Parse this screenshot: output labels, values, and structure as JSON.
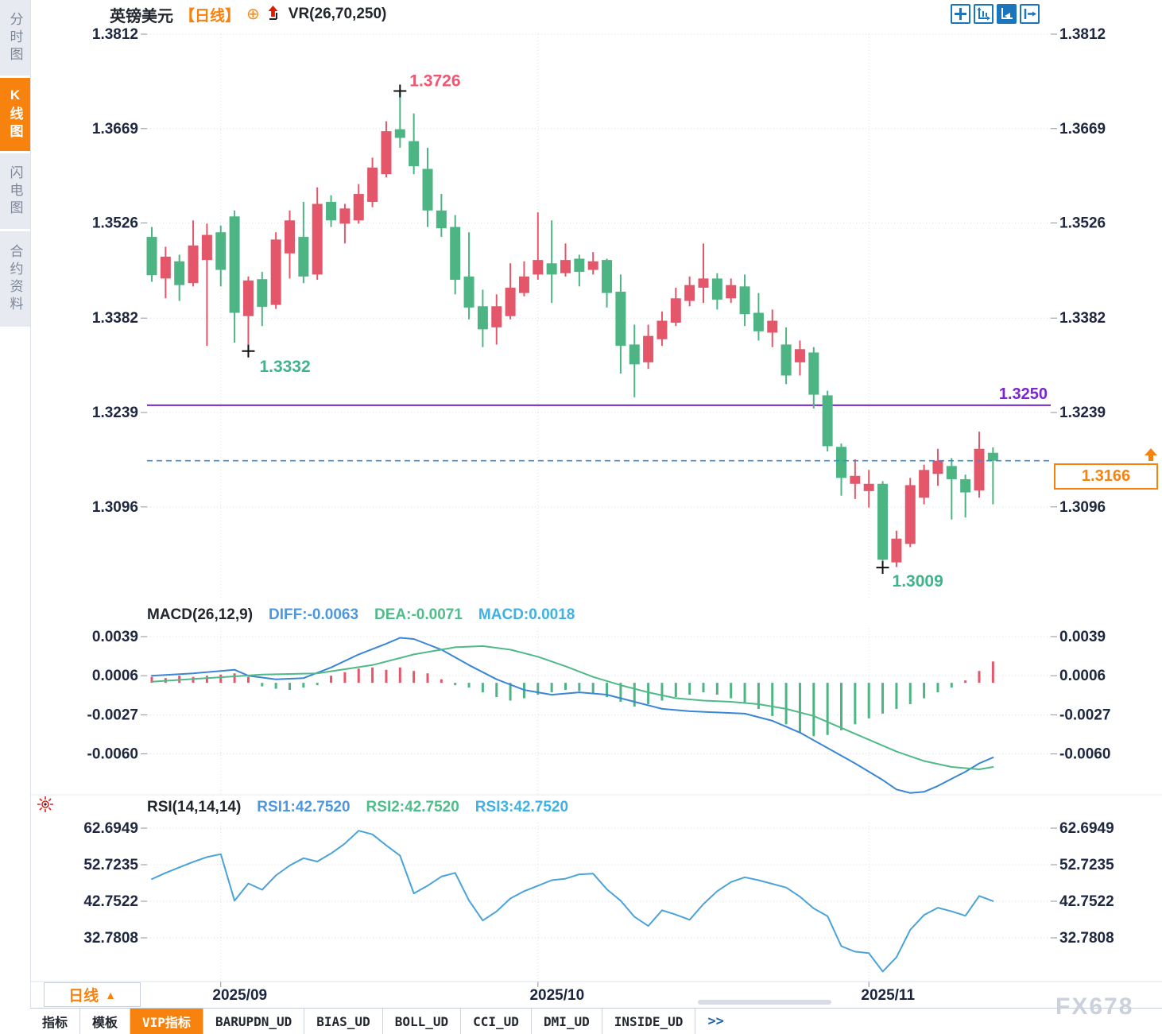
{
  "header": {
    "symbol": "英镑美元",
    "period_tag": "【日线】",
    "plus_icon": "⊕",
    "indicator": "VR(26,70,250)"
  },
  "sidebar": {
    "items": [
      {
        "label": "分时图",
        "active": false
      },
      {
        "label": "K线图",
        "active": true
      },
      {
        "label": "闪电图",
        "active": false
      },
      {
        "label": "合约资料",
        "active": false
      }
    ]
  },
  "toolbar_icons": [
    {
      "name": "crosshair-move-icon",
      "active": false
    },
    {
      "name": "axis-scale-icon",
      "active": false
    },
    {
      "name": "axis-play-icon",
      "active": true
    },
    {
      "name": "pan-right-icon",
      "active": false
    }
  ],
  "price_box": {
    "value": "1.3166"
  },
  "macd_header": {
    "title": "MACD(26,12,9)",
    "diff": "DIFF:-0.0063",
    "dea": "DEA:-0.0071",
    "macd": "MACD:0.0018"
  },
  "rsi_header": {
    "title": "RSI(14,14,14)",
    "rsi1": "RSI1:42.7520",
    "rsi2": "RSI2:42.7520",
    "rsi3": "RSI3:42.7520"
  },
  "period_button": {
    "label": "日线",
    "arrow": "▲"
  },
  "bottom_tabs": [
    {
      "label": "指标",
      "active": false
    },
    {
      "label": "模板",
      "active": false
    },
    {
      "label": "VIP指标",
      "active": true
    },
    {
      "label": "BARUPDN_UD",
      "active": false
    },
    {
      "label": "BIAS_UD",
      "active": false
    },
    {
      "label": "BOLL_UD",
      "active": false
    },
    {
      "label": "CCI_UD",
      "active": false
    },
    {
      "label": "DMI_UD",
      "active": false
    },
    {
      "label": "INSIDE_UD",
      "active": false
    },
    {
      "label": ">>",
      "active": false,
      "more": true
    }
  ],
  "watermark": "FX678",
  "colors": {
    "up": "#e4566a",
    "down": "#4db583",
    "orange": "#f8820e",
    "purple": "#7b24cf",
    "dash_blue": "#2b8fe8",
    "axis_text": "#1e2740",
    "grid": "#dcdcdc",
    "diff_line": "#3a86d6",
    "dea_line": "#4fba87",
    "rsi_line": "#4aa3d8",
    "ann_red": "#ef5670",
    "ann_green": "#3db489",
    "toolbar_blue": "#1b75bc"
  },
  "chart_data": [
    {
      "type": "candlestick",
      "title": "英镑美元 日线 (GBP/USD daily)",
      "ylabel": "price",
      "y_axis_ticks": [
        1.3812,
        1.3669,
        1.3526,
        1.3382,
        1.3239,
        1.3096
      ],
      "x_axis_ticks": [
        "2025/09",
        "2025/10",
        "2025/11"
      ],
      "month_tick_indices": [
        5,
        28,
        52
      ],
      "support_line": {
        "value": 1.325,
        "label": "1.3250"
      },
      "last_price_line": {
        "value": 1.3166,
        "label": "1.3166"
      },
      "high_annotation": {
        "index": 18,
        "price": 1.3726,
        "label": "1.3726"
      },
      "low_annotations": [
        {
          "index": 7,
          "price": 1.3332,
          "label": "1.3332"
        },
        {
          "index": 53,
          "price": 1.3009,
          "label": "1.3009"
        }
      ],
      "up_color_convention": "red-up-green-down",
      "candles_ohlc": [
        [
          1.3505,
          1.352,
          1.3437,
          1.3447
        ],
        [
          1.3442,
          1.349,
          1.3412,
          1.3475
        ],
        [
          1.3468,
          1.3478,
          1.3408,
          1.3432
        ],
        [
          1.3435,
          1.353,
          1.343,
          1.3492
        ],
        [
          1.347,
          1.3525,
          1.334,
          1.3508
        ],
        [
          1.3512,
          1.3522,
          1.343,
          1.3455
        ],
        [
          1.3536,
          1.3545,
          1.3345,
          1.339
        ],
        [
          1.3385,
          1.3445,
          1.3332,
          1.3439
        ],
        [
          1.3441,
          1.3452,
          1.337,
          1.3399
        ],
        [
          1.3402,
          1.3512,
          1.3396,
          1.3501
        ],
        [
          1.348,
          1.3545,
          1.3442,
          1.353
        ],
        [
          1.3505,
          1.3558,
          1.3435,
          1.3445
        ],
        [
          1.3448,
          1.358,
          1.344,
          1.3555
        ],
        [
          1.3558,
          1.3568,
          1.352,
          1.353
        ],
        [
          1.3525,
          1.3555,
          1.3495,
          1.3548
        ],
        [
          1.353,
          1.3585,
          1.3525,
          1.357
        ],
        [
          1.3558,
          1.3625,
          1.355,
          1.361
        ],
        [
          1.36,
          1.368,
          1.3595,
          1.3665
        ],
        [
          1.3668,
          1.3726,
          1.364,
          1.3655
        ],
        [
          1.365,
          1.3692,
          1.36,
          1.3612
        ],
        [
          1.3608,
          1.364,
          1.352,
          1.3545
        ],
        [
          1.3545,
          1.357,
          1.3505,
          1.3518
        ],
        [
          1.352,
          1.3538,
          1.3418,
          1.344
        ],
        [
          1.3445,
          1.3512,
          1.338,
          1.3398
        ],
        [
          1.34,
          1.3425,
          1.3338,
          1.3365
        ],
        [
          1.3368,
          1.3418,
          1.3342,
          1.34
        ],
        [
          1.3385,
          1.3465,
          1.338,
          1.3428
        ],
        [
          1.342,
          1.3468,
          1.3415,
          1.3445
        ],
        [
          1.3448,
          1.3542,
          1.344,
          1.347
        ],
        [
          1.3465,
          1.353,
          1.3405,
          1.3448
        ],
        [
          1.345,
          1.3495,
          1.3445,
          1.347
        ],
        [
          1.3472,
          1.3478,
          1.343,
          1.3452
        ],
        [
          1.3455,
          1.3482,
          1.3448,
          1.3468
        ],
        [
          1.347,
          1.3472,
          1.3398,
          1.342
        ],
        [
          1.3422,
          1.3448,
          1.3298,
          1.334
        ],
        [
          1.3342,
          1.3372,
          1.3262,
          1.3312
        ],
        [
          1.3315,
          1.3372,
          1.3305,
          1.3355
        ],
        [
          1.335,
          1.3392,
          1.334,
          1.3378
        ],
        [
          1.3375,
          1.3428,
          1.337,
          1.3412
        ],
        [
          1.3408,
          1.3445,
          1.34,
          1.3432
        ],
        [
          1.3428,
          1.3495,
          1.3405,
          1.3442
        ],
        [
          1.3442,
          1.345,
          1.3395,
          1.341
        ],
        [
          1.3412,
          1.3442,
          1.3405,
          1.3432
        ],
        [
          1.343,
          1.3448,
          1.337,
          1.3388
        ],
        [
          1.339,
          1.342,
          1.3348,
          1.3362
        ],
        [
          1.336,
          1.3395,
          1.3338,
          1.3378
        ],
        [
          1.3342,
          1.3368,
          1.3282,
          1.3295
        ],
        [
          1.3315,
          1.3348,
          1.3295,
          1.3335
        ],
        [
          1.333,
          1.3338,
          1.3245,
          1.3266
        ],
        [
          1.3265,
          1.3272,
          1.318,
          1.3188
        ],
        [
          1.3187,
          1.3192,
          1.3113,
          1.314
        ],
        [
          1.3131,
          1.3168,
          1.3108,
          1.3143
        ],
        [
          1.312,
          1.3152,
          1.3095,
          1.3131
        ],
        [
          1.3131,
          1.3135,
          1.3009,
          1.3016
        ],
        [
          1.3012,
          1.306,
          1.3005,
          1.3048
        ],
        [
          1.304,
          1.314,
          1.3035,
          1.3129
        ],
        [
          1.311,
          1.316,
          1.31,
          1.3152
        ],
        [
          1.3146,
          1.3184,
          1.3128,
          1.3166
        ],
        [
          1.3158,
          1.317,
          1.3077,
          1.3138
        ],
        [
          1.3138,
          1.3145,
          1.308,
          1.3118
        ],
        [
          1.3121,
          1.321,
          1.311,
          1.3184
        ],
        [
          1.3178,
          1.3186,
          1.31,
          1.3166
        ]
      ]
    },
    {
      "type": "macd",
      "title": "MACD(26,12,9)",
      "y_axis_ticks": [
        0.0039,
        0.0006,
        -0.0027,
        -0.006
      ],
      "diff_last": -0.0063,
      "dea_last": -0.0071,
      "macd_last": 0.0018,
      "histogram": [
        0.0005,
        0.0004,
        0.0006,
        0.0005,
        0.0006,
        0.0007,
        0.0008,
        0.0005,
        -0.0003,
        -0.0005,
        -0.0006,
        -0.0004,
        -0.0002,
        0.0006,
        0.0009,
        0.0012,
        0.0013,
        0.0011,
        0.0013,
        0.001,
        0.0008,
        0.0003,
        -0.0002,
        -0.0004,
        -0.0008,
        -0.0012,
        -0.0015,
        -0.0013,
        -0.001,
        -0.0008,
        -0.0006,
        -0.0007,
        -0.0009,
        -0.0012,
        -0.0016,
        -0.002,
        -0.0018,
        -0.0015,
        -0.0012,
        -0.001,
        -0.0008,
        -0.001,
        -0.0013,
        -0.0017,
        -0.0022,
        -0.0028,
        -0.0035,
        -0.0042,
        -0.0045,
        -0.0044,
        -0.004,
        -0.0035,
        -0.003,
        -0.0026,
        -0.0022,
        -0.0018,
        -0.0013,
        -0.0008,
        -0.0004,
        0.0002,
        0.001,
        0.0018
      ],
      "diff_points": [
        [
          0,
          0.0006
        ],
        [
          3,
          0.0008
        ],
        [
          6,
          0.0011
        ],
        [
          7,
          0.0006
        ],
        [
          9,
          0.0003
        ],
        [
          11,
          0.0004
        ],
        [
          13,
          0.0013
        ],
        [
          15,
          0.0024
        ],
        [
          17,
          0.0033
        ],
        [
          18,
          0.0038
        ],
        [
          19,
          0.0037
        ],
        [
          21,
          0.0028
        ],
        [
          23,
          0.0015
        ],
        [
          25,
          0.0003
        ],
        [
          27,
          -0.0006
        ],
        [
          29,
          -0.001
        ],
        [
          31,
          -0.0008
        ],
        [
          33,
          -0.001
        ],
        [
          35,
          -0.0016
        ],
        [
          37,
          -0.0022
        ],
        [
          39,
          -0.0024
        ],
        [
          41,
          -0.0025
        ],
        [
          43,
          -0.0026
        ],
        [
          45,
          -0.0032
        ],
        [
          47,
          -0.0042
        ],
        [
          49,
          -0.0055
        ],
        [
          51,
          -0.0068
        ],
        [
          53,
          -0.0082
        ],
        [
          54,
          -0.009
        ],
        [
          55,
          -0.0093
        ],
        [
          56,
          -0.0092
        ],
        [
          57,
          -0.0087
        ],
        [
          58,
          -0.0081
        ],
        [
          59,
          -0.0075
        ],
        [
          60,
          -0.0068
        ],
        [
          61,
          -0.0063
        ]
      ],
      "dea_points": [
        [
          0,
          0.0001
        ],
        [
          4,
          0.0004
        ],
        [
          8,
          0.0007
        ],
        [
          12,
          0.0008
        ],
        [
          16,
          0.0015
        ],
        [
          19,
          0.0024
        ],
        [
          22,
          0.003
        ],
        [
          24,
          0.0031
        ],
        [
          26,
          0.0028
        ],
        [
          28,
          0.0022
        ],
        [
          30,
          0.0014
        ],
        [
          32,
          0.0005
        ],
        [
          34,
          -0.0002
        ],
        [
          36,
          -0.0008
        ],
        [
          38,
          -0.0013
        ],
        [
          40,
          -0.0015
        ],
        [
          42,
          -0.0016
        ],
        [
          44,
          -0.0018
        ],
        [
          46,
          -0.0022
        ],
        [
          48,
          -0.0028
        ],
        [
          50,
          -0.0038
        ],
        [
          52,
          -0.0048
        ],
        [
          54,
          -0.0058
        ],
        [
          56,
          -0.0066
        ],
        [
          58,
          -0.0071
        ],
        [
          60,
          -0.0073
        ],
        [
          61,
          -0.0071
        ]
      ]
    },
    {
      "type": "line",
      "title": "RSI(14,14,14)",
      "y_axis_ticks": [
        62.6949,
        52.7235,
        42.7522,
        32.7808
      ],
      "last": 42.752,
      "values": [
        48.8,
        50.5,
        52.0,
        53.5,
        54.8,
        55.6,
        42.9,
        47.6,
        45.9,
        49.8,
        52.5,
        54.5,
        53.6,
        55.8,
        58.5,
        62.0,
        61.0,
        58.0,
        55.2,
        44.9,
        47.0,
        49.5,
        50.5,
        43.0,
        37.5,
        40.0,
        43.5,
        45.5,
        47.0,
        48.5,
        48.9,
        50.1,
        50.3,
        46.0,
        42.9,
        38.5,
        36.0,
        40.3,
        39.1,
        37.7,
        42.0,
        45.5,
        48.0,
        49.3,
        48.5,
        47.5,
        46.5,
        44.0,
        40.8,
        38.7,
        30.5,
        29.0,
        28.6,
        23.6,
        27.5,
        35.0,
        39.0,
        41.0,
        40.0,
        38.8,
        44.2,
        42.8
      ]
    }
  ]
}
